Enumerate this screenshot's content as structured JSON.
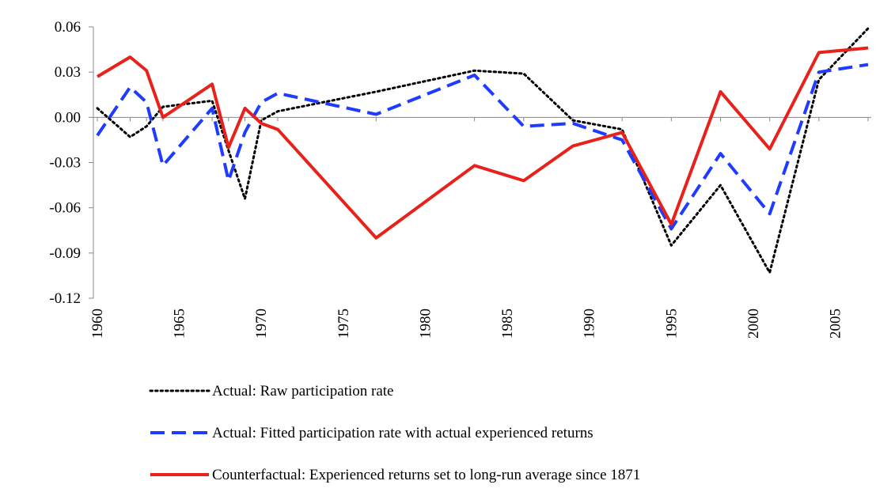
{
  "chart_data": {
    "type": "line",
    "x": [
      1960,
      1962,
      1963,
      1964,
      1967,
      1968,
      1969,
      1970,
      1971,
      1977,
      1983,
      1986,
      1989,
      1992,
      1995,
      1998,
      2001,
      2004,
      2007
    ],
    "series": [
      {
        "name": "Actual: Raw participation rate",
        "color": "#000000",
        "dash": "dotted",
        "values": [
          0.006,
          -0.013,
          -0.006,
          0.007,
          0.011,
          -0.022,
          -0.054,
          -0.002,
          0.004,
          0.017,
          0.031,
          0.029,
          -0.002,
          -0.008,
          -0.085,
          -0.045,
          -0.103,
          0.025,
          0.059
        ]
      },
      {
        "name": "Actual: Fitted participation rate with actual experienced returns",
        "color": "#1f3bff",
        "dash": "dashed",
        "values": [
          -0.012,
          0.02,
          0.01,
          -0.032,
          0.006,
          -0.042,
          -0.01,
          0.01,
          0.016,
          0.002,
          0.028,
          -0.006,
          -0.004,
          -0.015,
          -0.074,
          -0.024,
          -0.064,
          0.03,
          0.035
        ]
      },
      {
        "name": "Counterfactual: Experienced returns set to long-run average since 1871",
        "color": "#e8221a",
        "dash": "solid",
        "values": [
          0.027,
          0.04,
          0.031,
          0.0,
          0.022,
          -0.02,
          0.006,
          -0.004,
          -0.008,
          -0.08,
          -0.032,
          -0.042,
          -0.019,
          -0.01,
          -0.071,
          0.017,
          -0.021,
          0.043,
          0.046
        ]
      }
    ],
    "xlim": [
      1960,
      2007
    ],
    "xticks": [
      1960,
      1965,
      1970,
      1975,
      1980,
      1985,
      1990,
      1995,
      2000,
      2005
    ],
    "ylim": [
      -0.12,
      0.06
    ],
    "yticks": [
      0.06,
      0.03,
      {
        "value": 0,
        "label": "0.00"
      },
      -0.03,
      -0.06,
      -0.09,
      -0.12
    ]
  }
}
